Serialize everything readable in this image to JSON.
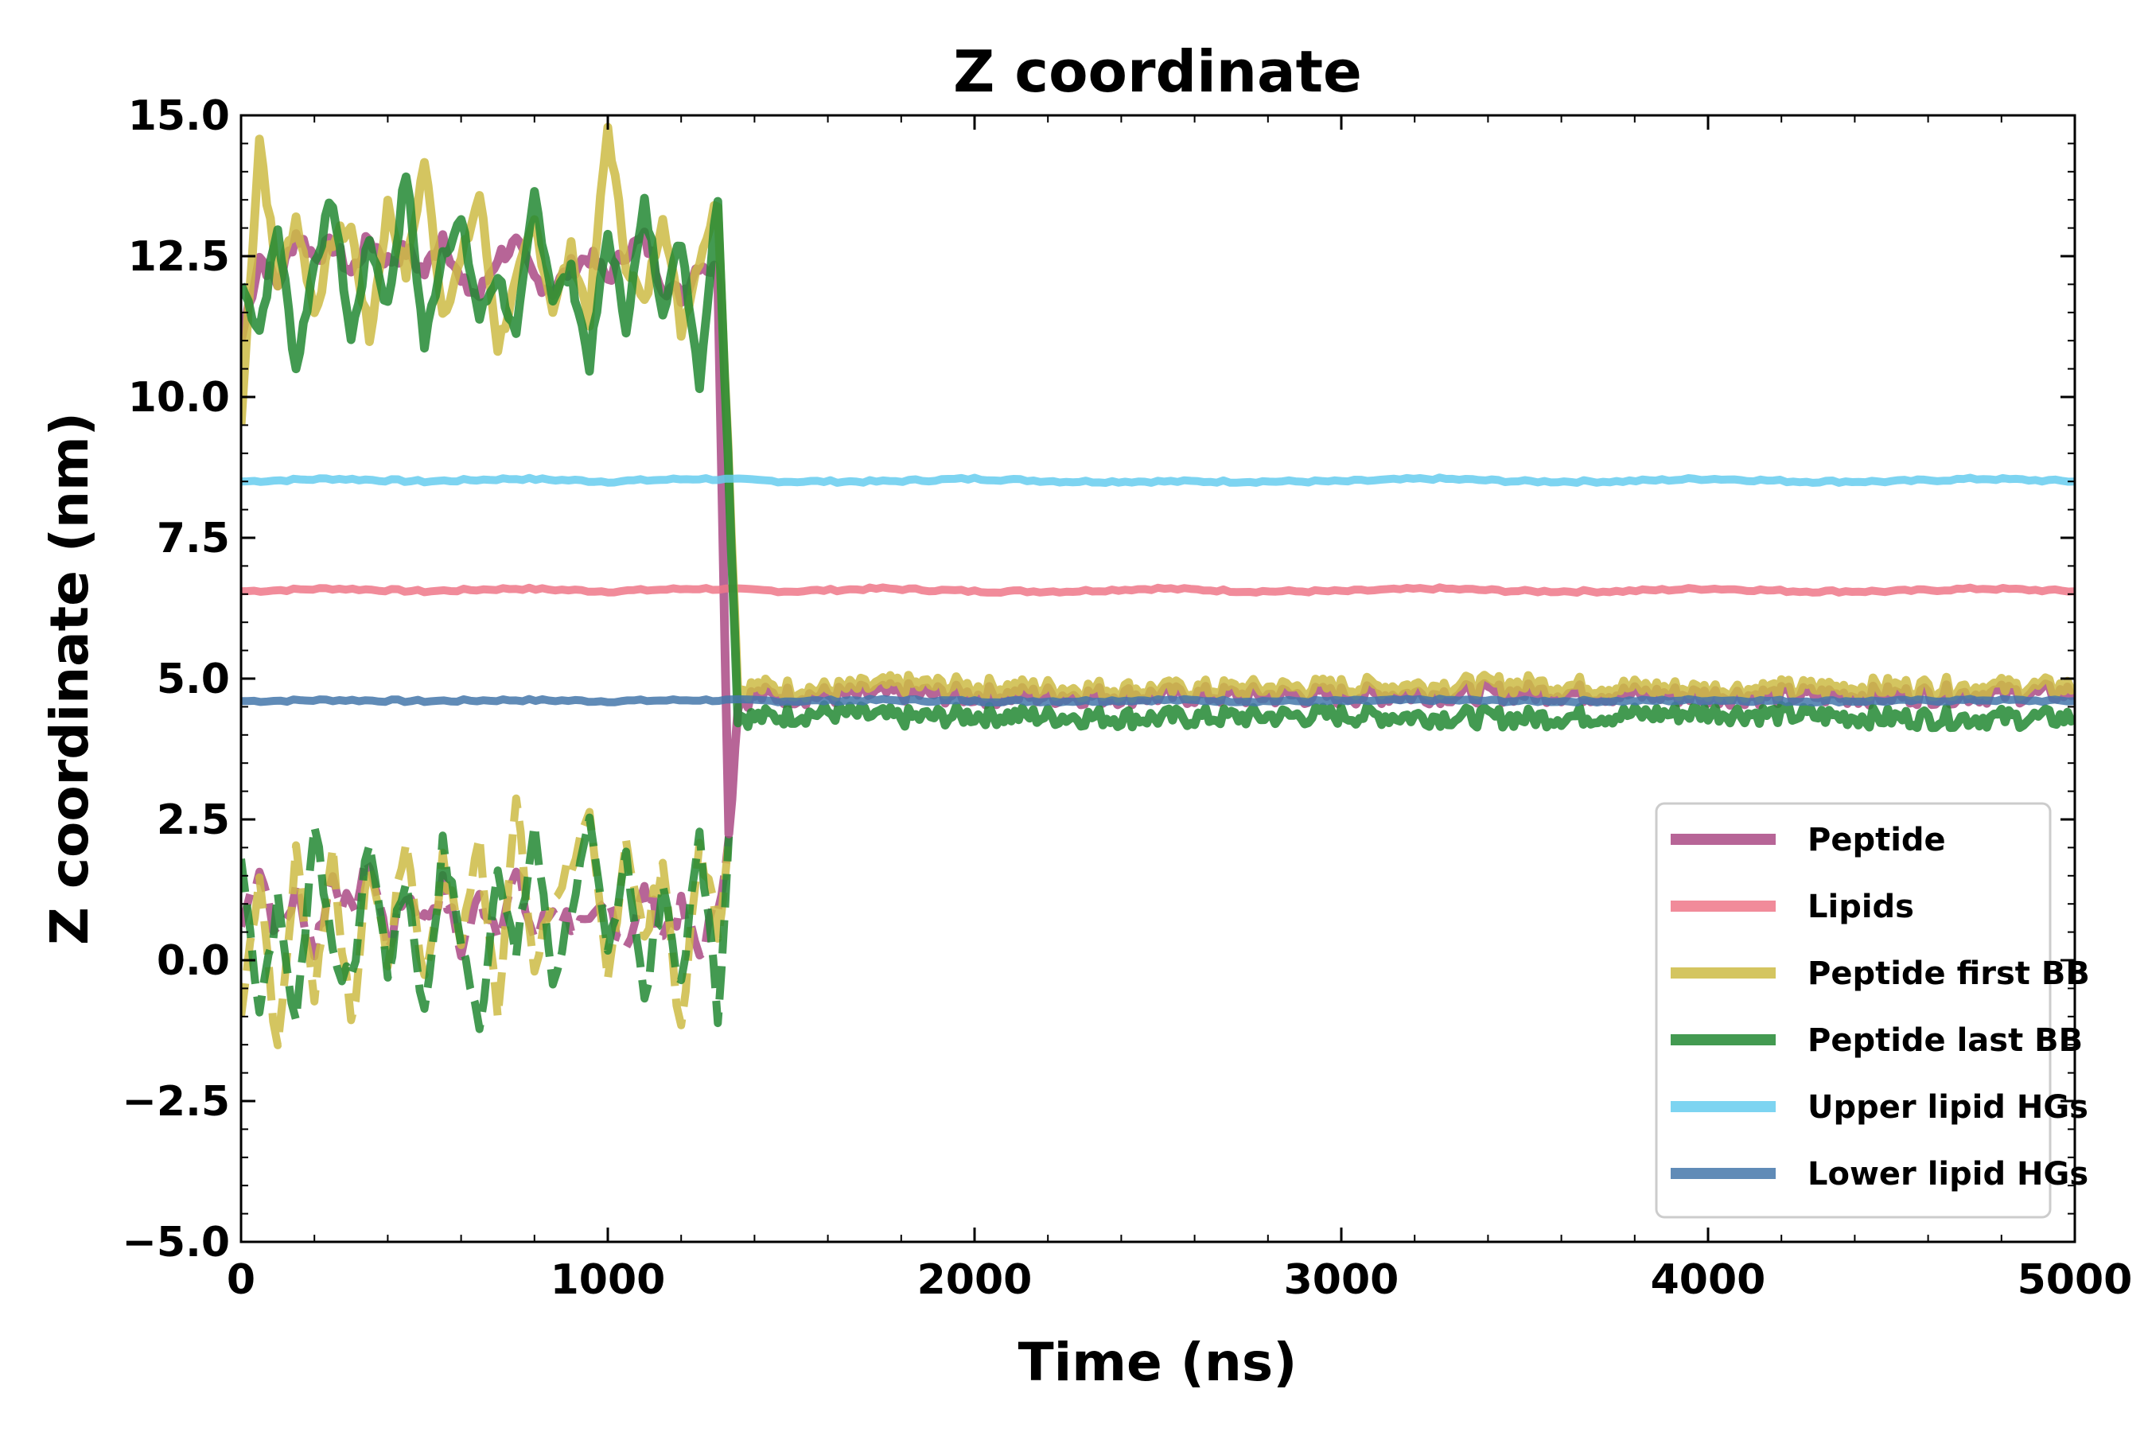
{
  "chart_data": {
    "type": "line",
    "title": "Z coordinate",
    "xlabel": "Time (ns)",
    "ylabel": "Z coordinate (nm)",
    "xlim": [
      0,
      5000
    ],
    "ylim": [
      -5.0,
      15.0
    ],
    "xticks": [
      0,
      1000,
      2000,
      3000,
      4000,
      5000
    ],
    "xtick_labels": [
      "0",
      "1000",
      "2000",
      "3000",
      "4000",
      "5000"
    ],
    "yticks": [
      -5.0,
      -2.5,
      0.0,
      2.5,
      5.0,
      7.5,
      10.0,
      12.5,
      15.0
    ],
    "ytick_labels": [
      "−5.0",
      "−2.5",
      "0.0",
      "2.5",
      "5.0",
      "7.5",
      "10.0",
      "12.5",
      "15.0"
    ],
    "grid": false,
    "legend_position": "lower-right",
    "series": [
      {
        "name": "Peptide",
        "color": "#aa4a85",
        "x": [
          0,
          50,
          100,
          150,
          200,
          250,
          300,
          350,
          400,
          450,
          500,
          550,
          600,
          650,
          700,
          750,
          800,
          850,
          900,
          950,
          1000,
          1050,
          1100,
          1150,
          1200,
          1250,
          1300,
          1330,
          1355,
          1400,
          1600,
          1800,
          2000,
          2500,
          3000,
          3500,
          4000,
          4500,
          5000
        ],
        "y": [
          11.0,
          12.5,
          12.0,
          12.9,
          12.5,
          12.7,
          12.2,
          12.8,
          12.4,
          12.6,
          12.2,
          12.9,
          12.0,
          11.8,
          12.5,
          12.7,
          12.1,
          11.9,
          12.3,
          12.5,
          12.1,
          12.6,
          12.8,
          12.0,
          11.8,
          12.4,
          12.2,
          2.2,
          4.6,
          4.7,
          4.7,
          4.75,
          4.7,
          4.7,
          4.7,
          4.75,
          4.7,
          4.7,
          4.75
        ],
        "breaks": [
          [
            1330,
            1340
          ]
        ]
      },
      {
        "name": "Lipids",
        "color": "#ee7788",
        "x": [
          0,
          250,
          500,
          750,
          1000,
          1250,
          1500,
          1750,
          2000,
          2250,
          2500,
          2750,
          3000,
          3250,
          3500,
          3750,
          4000,
          4250,
          4500,
          4750,
          5000
        ],
        "y": [
          6.55,
          6.6,
          6.55,
          6.6,
          6.55,
          6.6,
          6.55,
          6.6,
          6.55,
          6.55,
          6.6,
          6.55,
          6.55,
          6.6,
          6.55,
          6.55,
          6.6,
          6.55,
          6.55,
          6.6,
          6.55
        ]
      },
      {
        "name": "Peptide first BB",
        "color": "#ccbb44",
        "x": [
          0,
          50,
          100,
          150,
          200,
          250,
          300,
          350,
          400,
          450,
          500,
          550,
          600,
          650,
          700,
          750,
          800,
          850,
          900,
          950,
          1000,
          1050,
          1100,
          1150,
          1200,
          1250,
          1300,
          1355,
          1400,
          1600,
          1800,
          2000,
          2500,
          3000,
          3500,
          4000,
          4500,
          5000
        ],
        "y": [
          9.5,
          14.6,
          12.0,
          13.2,
          11.5,
          12.8,
          13.0,
          11.0,
          13.4,
          12.2,
          14.2,
          11.5,
          12.4,
          13.6,
          10.9,
          12.0,
          13.1,
          11.6,
          12.6,
          11.4,
          14.8,
          12.4,
          11.6,
          13.3,
          11.2,
          12.5,
          13.5,
          4.8,
          4.85,
          4.8,
          4.9,
          4.85,
          4.8,
          4.85,
          4.9,
          4.8,
          4.85,
          4.85
        ]
      },
      {
        "name": "Peptide last BB",
        "color": "#228833",
        "x": [
          0,
          50,
          100,
          150,
          200,
          250,
          300,
          350,
          400,
          450,
          500,
          550,
          600,
          650,
          700,
          750,
          800,
          850,
          900,
          950,
          1000,
          1050,
          1100,
          1150,
          1200,
          1250,
          1300,
          1355,
          1400,
          1600,
          1800,
          2000,
          2500,
          3000,
          3500,
          4000,
          4500,
          5000
        ],
        "y": [
          12.0,
          11.2,
          13.0,
          10.5,
          12.4,
          13.5,
          11.0,
          12.8,
          11.6,
          14.0,
          10.9,
          12.6,
          13.1,
          11.4,
          12.2,
          11.0,
          13.6,
          11.8,
          12.2,
          10.6,
          12.9,
          11.3,
          13.4,
          11.6,
          12.8,
          10.3,
          13.6,
          4.35,
          4.3,
          4.4,
          4.3,
          4.35,
          4.3,
          4.35,
          4.3,
          4.4,
          4.3,
          4.3
        ]
      },
      {
        "name": "Upper lipid HGs",
        "color": "#66ccee",
        "x": [
          0,
          250,
          500,
          750,
          1000,
          1250,
          1500,
          1750,
          2000,
          2250,
          2500,
          2750,
          3000,
          3250,
          3500,
          3750,
          4000,
          4250,
          4500,
          4750,
          5000
        ],
        "y": [
          8.5,
          8.55,
          8.5,
          8.55,
          8.5,
          8.55,
          8.5,
          8.5,
          8.55,
          8.5,
          8.5,
          8.5,
          8.5,
          8.55,
          8.5,
          8.5,
          8.55,
          8.5,
          8.5,
          8.55,
          8.5
        ]
      },
      {
        "name": "Lower lipid HGs",
        "color": "#4477aa",
        "x": [
          0,
          250,
          500,
          750,
          1000,
          1250,
          1500,
          1750,
          2000,
          2250,
          2500,
          2750,
          3000,
          3250,
          3500,
          3750,
          4000,
          4250,
          4500,
          4750,
          5000
        ],
        "y": [
          4.6,
          4.62,
          4.6,
          4.62,
          4.6,
          4.62,
          4.6,
          4.62,
          4.6,
          4.6,
          4.62,
          4.6,
          4.6,
          4.62,
          4.6,
          4.6,
          4.62,
          4.6,
          4.6,
          4.62,
          4.6
        ]
      }
    ],
    "lower_branch": [
      {
        "name": "Peptide",
        "color": "#aa4a85",
        "x": [
          0,
          50,
          100,
          150,
          200,
          250,
          300,
          350,
          400,
          450,
          500,
          550,
          600,
          650,
          700,
          750,
          800,
          850,
          950,
          1000,
          1050,
          1100,
          1150,
          1200,
          1250,
          1300,
          1330
        ],
        "y": [
          0.6,
          1.7,
          0.4,
          1.2,
          0.2,
          1.5,
          0.8,
          1.8,
          0.3,
          1.2,
          0.7,
          1.3,
          0.2,
          1.1,
          0.6,
          1.5,
          0.4,
          0.9,
          0.5,
          1.0,
          0.3,
          1.2,
          0.5,
          0.9,
          0.1,
          1.0,
          2.2
        ]
      },
      {
        "name": "Peptide first BB",
        "color": "#ccbb44",
        "x": [
          0,
          50,
          100,
          150,
          200,
          250,
          300,
          350,
          400,
          450,
          500,
          550,
          600,
          650,
          700,
          750,
          800,
          850,
          950,
          1000,
          1050,
          1100,
          1150,
          1200,
          1250,
          1300,
          1330
        ],
        "y": [
          -1.0,
          1.6,
          -1.7,
          1.9,
          -0.6,
          2.0,
          -1.3,
          1.8,
          0.0,
          2.2,
          -0.4,
          1.7,
          0.4,
          2.1,
          -0.8,
          2.8,
          -0.2,
          1.1,
          2.4,
          -0.4,
          2.2,
          0.3,
          1.8,
          -1.4,
          2.1,
          0.5,
          2.2
        ]
      },
      {
        "name": "Peptide last BB",
        "color": "#228833",
        "x": [
          0,
          50,
          100,
          150,
          200,
          250,
          300,
          350,
          400,
          450,
          500,
          550,
          600,
          650,
          700,
          750,
          800,
          850,
          950,
          1000,
          1050,
          1100,
          1150,
          1200,
          1250,
          1300,
          1330
        ],
        "y": [
          1.8,
          -0.8,
          1.0,
          -1.2,
          2.5,
          0.2,
          -0.5,
          2.2,
          -0.2,
          1.5,
          -1.0,
          2.0,
          0.4,
          -1.3,
          1.8,
          0.0,
          2.4,
          -0.4,
          2.3,
          0.1,
          2.0,
          -0.8,
          1.4,
          -0.6,
          2.3,
          -1.0,
          2.2
        ]
      }
    ]
  }
}
